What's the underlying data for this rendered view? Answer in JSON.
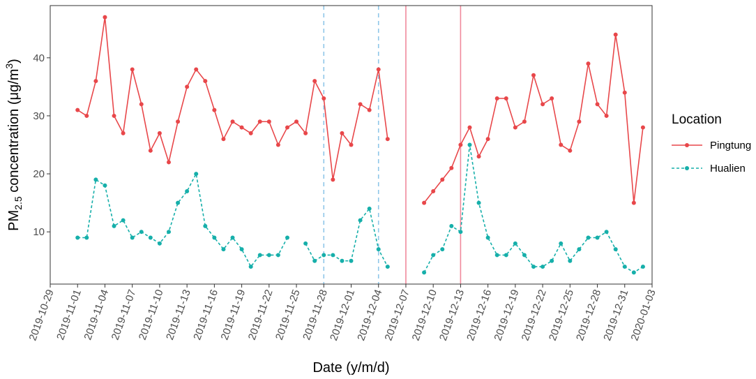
{
  "chart_data": {
    "type": "line",
    "xlabel": "Date (y/m/d)",
    "ylabel": {
      "prefix": "PM",
      "sub": "2.5",
      "middle": " concentration (μg/m",
      "sup": "3",
      "suffix": ")"
    },
    "xlim": [
      "2019-10-29",
      "2020-01-03"
    ],
    "ylim": [
      1,
      49
    ],
    "x_ticks": [
      "2019-10-29",
      "2019-11-01",
      "2019-11-04",
      "2019-11-07",
      "2019-11-10",
      "2019-11-13",
      "2019-11-16",
      "2019-11-19",
      "2019-11-22",
      "2019-11-25",
      "2019-11-28",
      "2019-12-01",
      "2019-12-04",
      "2019-12-07",
      "2019-12-10",
      "2019-12-13",
      "2019-12-16",
      "2019-12-19",
      "2019-12-22",
      "2019-12-25",
      "2019-12-28",
      "2019-12-31",
      "2020-01-03"
    ],
    "y_ticks": [
      10,
      20,
      30,
      40
    ],
    "grid": false,
    "legend": {
      "title": "Location",
      "position": "right"
    },
    "x_start_date": "2019-11-01",
    "series": [
      {
        "name": "Pingtung",
        "color": "#E8474A",
        "style": "solid",
        "values": [
          31,
          30,
          36,
          47,
          30,
          27,
          38,
          32,
          24,
          27,
          22,
          29,
          35,
          38,
          36,
          31,
          26,
          29,
          28,
          27,
          29,
          29,
          25,
          28,
          29,
          27,
          36,
          33,
          19,
          27,
          25,
          32,
          31,
          38,
          26,
          null,
          null,
          null,
          15,
          17,
          19,
          21,
          25,
          28,
          23,
          26,
          33,
          33,
          28,
          29,
          37,
          32,
          33,
          25,
          24,
          29,
          39,
          32,
          30,
          44,
          34,
          15,
          28
        ]
      },
      {
        "name": "Hualien",
        "color": "#16AFAA",
        "style": "dashed",
        "values": [
          9,
          9,
          19,
          18,
          11,
          12,
          9,
          10,
          9,
          8,
          10,
          15,
          17,
          20,
          11,
          9,
          7,
          9,
          7,
          4,
          6,
          6,
          6,
          9,
          null,
          8,
          5,
          6,
          6,
          5,
          5,
          12,
          14,
          7,
          4,
          null,
          null,
          null,
          3,
          6,
          7,
          11,
          10,
          25,
          15,
          9,
          6,
          6,
          8,
          6,
          4,
          4,
          5,
          8,
          5,
          7,
          9,
          9,
          10,
          7,
          4,
          3,
          4
        ]
      }
    ],
    "vlines": [
      {
        "date": "2019-11-28",
        "style": "dashed",
        "color": "#8EC6E8"
      },
      {
        "date": "2019-12-04",
        "style": "dashed",
        "color": "#8EC6E8"
      },
      {
        "date": "2019-12-07",
        "style": "solid",
        "color": "#F0899C"
      },
      {
        "date": "2019-12-13",
        "style": "solid",
        "color": "#F0899C"
      }
    ]
  }
}
